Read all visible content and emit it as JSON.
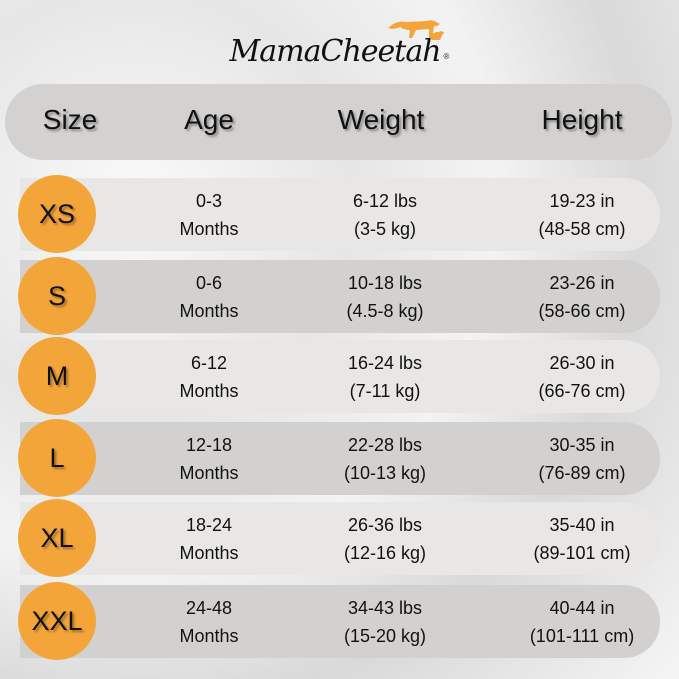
{
  "brand": {
    "logo_text": "MamaCheetah",
    "accent": "#f4a53a"
  },
  "header": {
    "size": "Size",
    "age": "Age",
    "weight": "Weight",
    "height": "Height"
  },
  "rows": [
    {
      "size": "XS",
      "age1": "0-3",
      "age2": "Months",
      "w1": "6-12 lbs",
      "w2": "(3-5 kg)",
      "h1": "19-23 in",
      "h2": "(48-58 cm)"
    },
    {
      "size": "S",
      "age1": "0-6",
      "age2": "Months",
      "w1": "10-18 lbs",
      "w2": "(4.5-8 kg)",
      "h1": "23-26 in",
      "h2": "(58-66 cm)"
    },
    {
      "size": "M",
      "age1": "6-12",
      "age2": "Months",
      "w1": "16-24 lbs",
      "w2": "(7-11 kg)",
      "h1": "26-30 in",
      "h2": "(66-76 cm)"
    },
    {
      "size": "L",
      "age1": "12-18",
      "age2": "Months",
      "w1": "22-28 lbs",
      "w2": "(10-13 kg)",
      "h1": "30-35 in",
      "h2": "(76-89 cm)"
    },
    {
      "size": "XL",
      "age1": "18-24",
      "age2": "Months",
      "w1": "26-36 lbs",
      "w2": "(12-16 kg)",
      "h1": "35-40 in",
      "h2": "(89-101 cm)"
    },
    {
      "size": "XXL",
      "age1": "24-48",
      "age2": "Months",
      "w1": "34-43 lbs",
      "w2": "(15-20 kg)",
      "h1": "40-44 in",
      "h2": "(101-111 cm)"
    }
  ]
}
